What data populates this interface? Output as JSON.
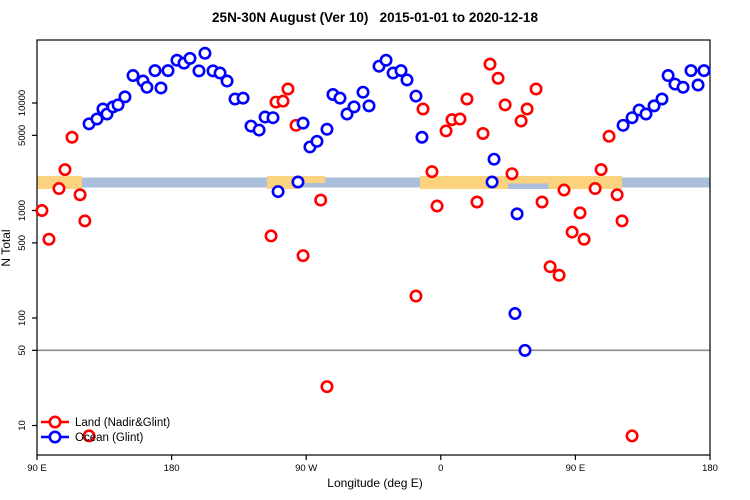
{
  "title": "25N-30N August (Ver 10)   2015-01-01 to 2020-12-18",
  "chart_data": {
    "type": "scatter",
    "title": "25N-30N August (Ver 10)   2015-01-01 to 2020-12-18",
    "xlabel": "Longitude (deg E)",
    "ylabel": "N Total",
    "x_axis": {
      "range_deg_east": [
        90,
        540
      ],
      "ticks": [
        {
          "lon": 90,
          "label": "90 E"
        },
        {
          "lon": 180,
          "label": "180"
        },
        {
          "lon": 270,
          "label": "90 W"
        },
        {
          "lon": 360,
          "label": "0"
        },
        {
          "lon": 450,
          "label": "90 E"
        },
        {
          "lon": 540,
          "label": "180"
        }
      ]
    },
    "y_axis": {
      "scale": "log",
      "range": [
        6.5,
        38000
      ],
      "ticks": [
        10,
        50,
        100,
        500,
        1000,
        5000,
        10000
      ]
    },
    "reference_line": {
      "value": 50,
      "color": "#8c8c8c"
    },
    "land_ocean_strip": {
      "center_value": 1900,
      "ocean_color": "#A9BFDC",
      "land_color": "#FBD27E",
      "segments": [
        {
          "type": "land",
          "lon": [
            90,
            120.1
          ]
        },
        {
          "type": "land",
          "lon": [
            243.8,
            263.2
          ]
        },
        {
          "type": "land-top",
          "lon": [
            263.2,
            282.6
          ]
        },
        {
          "type": "land",
          "lon": [
            346.0,
            481.2
          ]
        },
        {
          "type": "ocean-bottom",
          "lon": [
            405.0,
            432.0
          ]
        }
      ]
    },
    "legend": {
      "position": "bottom-left",
      "entries": [
        "Land (Nadir&Glint)",
        "Ocean (Glint)"
      ]
    },
    "series": [
      {
        "name": "Land (Nadir&Glint)",
        "color": "#ff0000",
        "points": [
          [
            93.3,
            1000
          ],
          [
            98,
            540
          ],
          [
            104.7,
            1600
          ],
          [
            108.7,
            2400
          ],
          [
            113.4,
            4800
          ],
          [
            118.8,
            1400
          ],
          [
            122,
            800
          ],
          [
            124.8,
            8
          ],
          [
            246.5,
            580
          ],
          [
            249.8,
            10200
          ],
          [
            254.5,
            10400
          ],
          [
            257.8,
            13500
          ],
          [
            263.2,
            6200
          ],
          [
            267.9,
            380
          ],
          [
            279.7,
            1250
          ],
          [
            283.9,
            23
          ],
          [
            343.4,
            160
          ],
          [
            348.1,
            8800
          ],
          [
            354.1,
            2300
          ],
          [
            357.5,
            1100
          ],
          [
            363.5,
            5500
          ],
          [
            367.5,
            7000
          ],
          [
            372.8,
            7100
          ],
          [
            377.5,
            10900
          ],
          [
            384.2,
            1200
          ],
          [
            388.2,
            5200
          ],
          [
            392.9,
            23000
          ],
          [
            398.3,
            17000
          ],
          [
            403,
            9600
          ],
          [
            407.6,
            2200
          ],
          [
            413.7,
            6800
          ],
          [
            417.7,
            8800
          ],
          [
            423.7,
            13500
          ],
          [
            427.7,
            1200
          ],
          [
            433.1,
            300
          ],
          [
            439.1,
            250
          ],
          [
            442.4,
            1550
          ],
          [
            447.8,
            630
          ],
          [
            453.1,
            950
          ],
          [
            455.8,
            540
          ],
          [
            463.2,
            1600
          ],
          [
            467.2,
            2400
          ],
          [
            472.5,
            4900
          ],
          [
            477.9,
            1400
          ],
          [
            481.2,
            800
          ],
          [
            487.9,
            8
          ]
        ]
      },
      {
        "name": "Ocean (Glint)",
        "color": "#0000ff",
        "points": [
          [
            124.8,
            6400
          ],
          [
            130.1,
            7100
          ],
          [
            134.1,
            8800
          ],
          [
            136.8,
            7900
          ],
          [
            140.8,
            9200
          ],
          [
            144.2,
            9600
          ],
          [
            148.8,
            11400
          ],
          [
            154.2,
            18000
          ],
          [
            160.9,
            16000
          ],
          [
            163.5,
            14000
          ],
          [
            168.9,
            20000
          ],
          [
            172.9,
            13800
          ],
          [
            177.6,
            20000
          ],
          [
            183.6,
            25000
          ],
          [
            188.3,
            23500
          ],
          [
            192.3,
            26000
          ],
          [
            198.3,
            19900
          ],
          [
            202.3,
            29000
          ],
          [
            207.7,
            19900
          ],
          [
            212.4,
            19000
          ],
          [
            217.1,
            16000
          ],
          [
            222.4,
            10900
          ],
          [
            227.8,
            11100
          ],
          [
            233.1,
            6100
          ],
          [
            238.5,
            5600
          ],
          [
            242.5,
            7400
          ],
          [
            247.8,
            7300
          ],
          [
            251.2,
            1500
          ],
          [
            264.5,
            1840
          ],
          [
            267.9,
            6500
          ],
          [
            272.5,
            3900
          ],
          [
            277.2,
            4400
          ],
          [
            283.9,
            5700
          ],
          [
            287.9,
            12000
          ],
          [
            292.6,
            11100
          ],
          [
            297.3,
            7900
          ],
          [
            302,
            9200
          ],
          [
            308,
            12600
          ],
          [
            312,
            9400
          ],
          [
            318.7,
            22000
          ],
          [
            323.4,
            25000
          ],
          [
            328.1,
            19000
          ],
          [
            333.4,
            20000
          ],
          [
            337.4,
            16400
          ],
          [
            343.4,
            11600
          ],
          [
            347.4,
            4800
          ],
          [
            394.3,
            1840
          ],
          [
            395.6,
            3000
          ],
          [
            409.6,
            110
          ],
          [
            411,
            930
          ],
          [
            416.3,
            50
          ],
          [
            481.9,
            6200
          ],
          [
            487.9,
            7300
          ],
          [
            492.6,
            8600
          ],
          [
            497.2,
            7900
          ],
          [
            502.6,
            9400
          ],
          [
            507.9,
            10900
          ],
          [
            512,
            18000
          ],
          [
            516.6,
            15000
          ],
          [
            522,
            14000
          ],
          [
            527.3,
            20000
          ],
          [
            532,
            14700
          ],
          [
            536,
            20000
          ]
        ]
      }
    ]
  }
}
